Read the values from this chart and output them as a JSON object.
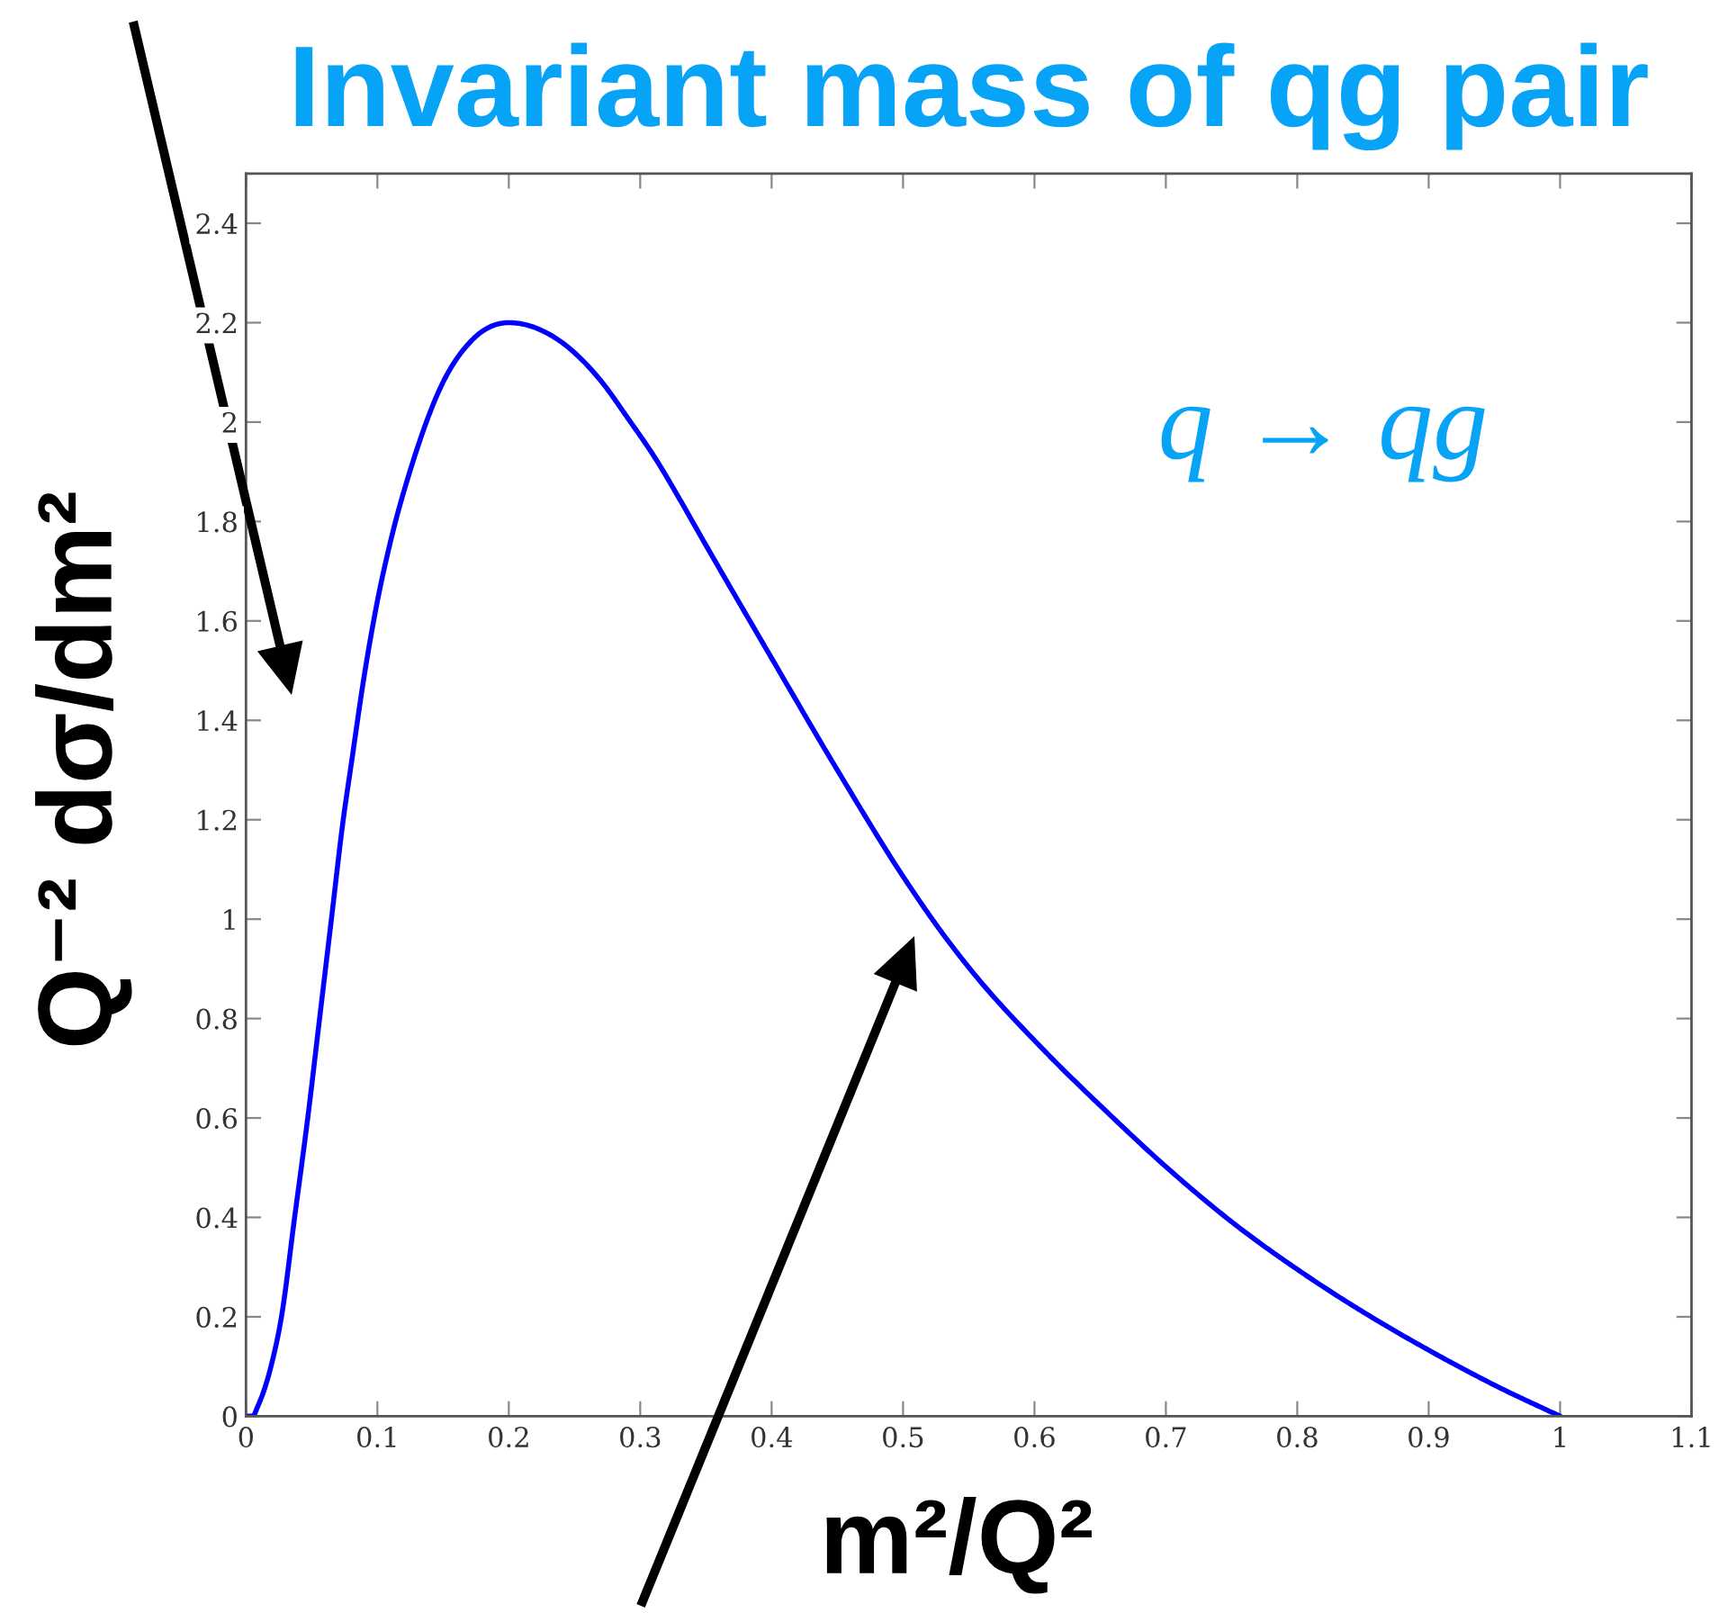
{
  "chart_data": {
    "type": "line",
    "title": "Invariant mass of qg pair",
    "xlabel": "m²/Q²",
    "ylabel": "Q⁻² dσ/dm²",
    "annotations": [
      "q → qg"
    ],
    "x": [
      0,
      0.005,
      0.009,
      0.019,
      0.027,
      0.037,
      0.047,
      0.056,
      0.065,
      0.074,
      0.08,
      0.09,
      0.1,
      0.11,
      0.127,
      0.149,
      0.172,
      0.2,
      0.235,
      0.271,
      0.29,
      0.312,
      0.33,
      0.344,
      0.4,
      0.45,
      0.504,
      0.529,
      0.554,
      0.604,
      0.654,
      0.703,
      0.753,
      0.803,
      0.853,
      0.902,
      0.952,
      1.0
    ],
    "series": [
      {
        "color": "#0000ff",
        "values": [
          0,
          0,
          0.02,
          0.1,
          0.2,
          0.4,
          0.6,
          0.8,
          1.0,
          1.2,
          1.31,
          1.49,
          1.64,
          1.76,
          1.92,
          2.075,
          2.165,
          2.2,
          2.17,
          2.08,
          2.01,
          1.925,
          1.845,
          1.78,
          1.525,
          1.3,
          1.07,
          0.975,
          0.89,
          0.745,
          0.615,
          0.495,
          0.385,
          0.29,
          0.205,
          0.13,
          0.06,
          0
        ]
      }
    ],
    "xlim": [
      0,
      1.1
    ],
    "xticks": [
      0,
      0.1,
      0.2,
      0.3,
      0.4,
      0.5,
      0.6,
      0.7,
      0.8,
      0.9,
      1,
      1.1
    ],
    "ylim": [
      0,
      2.5
    ],
    "yticks": [
      0,
      0.2,
      0.4,
      0.6,
      0.8,
      1,
      1.2,
      1.4,
      1.6,
      1.8,
      2,
      2.2,
      2.4
    ],
    "grid": false,
    "marker": "none",
    "line_style": "solid"
  }
}
